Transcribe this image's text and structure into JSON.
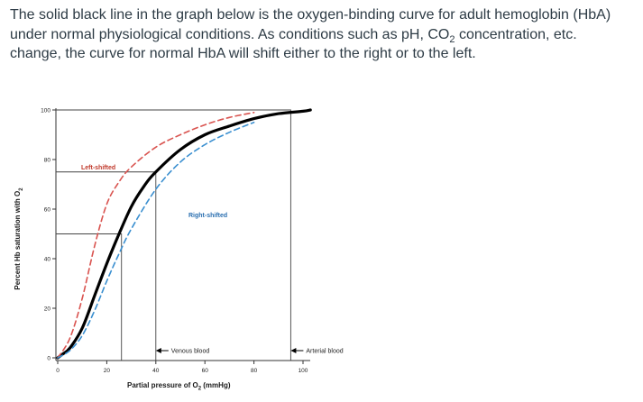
{
  "question": {
    "text_before": "The solid black line in the graph below is the oxygen-binding curve for adult hemoglobin (HbA) under normal physiological conditions. As conditions such as pH, CO",
    "sub": "2",
    "text_after": " concentration, etc. change, the curve for normal HbA will shift either to the right or to the left."
  },
  "chart_data": {
    "type": "line",
    "ylabel": {
      "main": "Percent Hb saturation with O",
      "sub": "2"
    },
    "xlabel": {
      "main": "Partial pressure of O",
      "sub": "2",
      "tail": " (mmHg)"
    },
    "x_ticks": [
      "0",
      "20",
      "40",
      "60",
      "80",
      "100"
    ],
    "y_ticks": [
      "0",
      "20",
      "40",
      "60",
      "80",
      "100"
    ],
    "xlim": [
      0,
      100
    ],
    "ylim": [
      0,
      100
    ],
    "series": [
      {
        "label": "normal HbA",
        "color": "#000000",
        "style": "solid",
        "x": [
          0,
          2,
          5,
          10,
          15,
          20,
          25,
          30,
          35,
          40,
          50,
          60,
          70,
          80,
          90,
          100,
          103
        ],
        "y": [
          0,
          1.5,
          4,
          12,
          25,
          38,
          50,
          61,
          69,
          75,
          84,
          90,
          93.5,
          96.5,
          98.5,
          99.5,
          100
        ]
      },
      {
        "label": "Left-shifted",
        "color": "#d9534f",
        "style": "dashed",
        "x": [
          0,
          5,
          10,
          15,
          20,
          25,
          30,
          40,
          50,
          60,
          70,
          80
        ],
        "y": [
          0,
          8,
          24,
          45,
          62,
          71,
          77,
          85,
          90,
          94,
          97,
          99
        ]
      },
      {
        "label": "Right-shifted",
        "color": "#3a8fd0",
        "style": "dashed",
        "x": [
          0,
          5,
          10,
          15,
          20,
          25,
          30,
          40,
          50,
          60,
          70,
          80
        ],
        "y": [
          0,
          3,
          9,
          19,
          31,
          42,
          52,
          68,
          79,
          86,
          91,
          95
        ]
      }
    ],
    "reference_lines": [
      {
        "x": 26,
        "y": 50
      },
      {
        "x": 40,
        "y": 75
      },
      {
        "x": 95,
        "y": 100
      }
    ],
    "annotations": {
      "left_shifted": "Left-shifted",
      "right_shifted": "Right-shifted",
      "venous": "Venous blood",
      "arterial": "Arterial blood"
    }
  }
}
